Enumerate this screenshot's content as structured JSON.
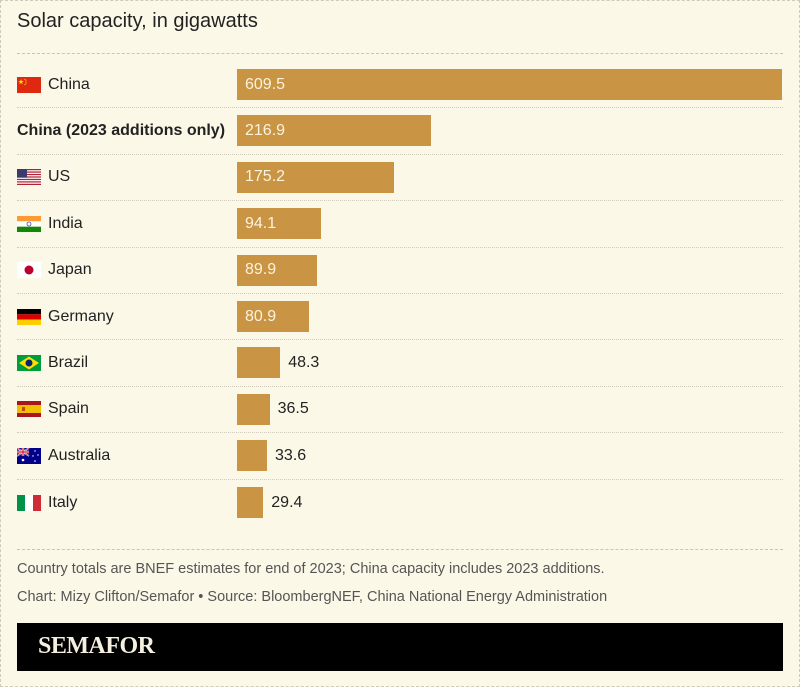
{
  "chart_data": {
    "type": "bar",
    "orientation": "horizontal",
    "title": "Solar capacity, in gigawatts",
    "xlabel": "",
    "ylabel": "",
    "unit": "gigawatts",
    "categories": [
      "China",
      "China (2023 additions only)",
      "US",
      "India",
      "Japan",
      "Germany",
      "Brazil",
      "Spain",
      "Australia",
      "Italy"
    ],
    "values": [
      609.5,
      216.9,
      175.2,
      94.1,
      89.9,
      80.9,
      48.3,
      36.5,
      33.6,
      29.4
    ],
    "value_labels": [
      "609.5",
      "216.9",
      "175.2",
      "94.1",
      "89.9",
      "80.9",
      "48.3",
      "36.5",
      "33.6",
      "29.4"
    ],
    "flags": [
      "china-flag",
      null,
      "us-flag",
      "india-flag",
      "japan-flag",
      "germany-flag",
      "brazil-flag",
      "spain-flag",
      "australia-flag",
      "italy-flag"
    ],
    "bold_rows": [
      "China (2023 additions only)"
    ],
    "xlim": [
      0,
      609.5
    ],
    "grid": false,
    "legend": "none",
    "bar_color": "#c99444"
  },
  "notes": {
    "line1": "Country totals are BNEF estimates for end of 2023; China capacity includes 2023 additions.",
    "line2": "Chart: Mizy Clifton/Semafor • Source: BloombergNEF, China National Energy Administration"
  },
  "brand": {
    "name": "SEMAFOR"
  }
}
